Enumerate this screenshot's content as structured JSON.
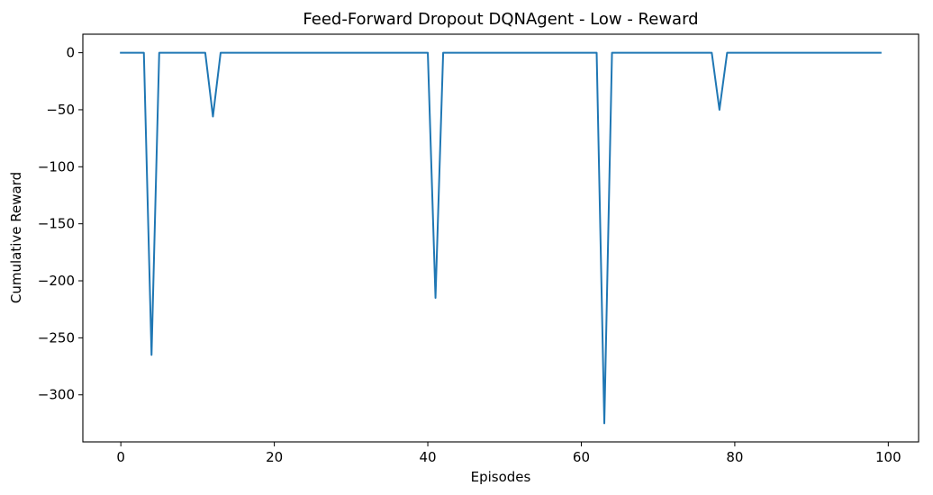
{
  "chart_data": {
    "type": "line",
    "title": "Feed-Forward Dropout DQNAgent - Low - Reward",
    "xlabel": "Episodes",
    "ylabel": "Cumulative Reward",
    "xlim": [
      -4.95,
      103.95
    ],
    "ylim": [
      -341.25,
      16.25
    ],
    "xticks": [
      0,
      20,
      40,
      60,
      80,
      100
    ],
    "yticks": [
      0,
      -50,
      -100,
      -150,
      -200,
      -250,
      -300
    ],
    "grid": false,
    "line_color": "#1f77b4",
    "series": [
      {
        "x": [
          0,
          1,
          2,
          3,
          4,
          5,
          6,
          7,
          8,
          9,
          10,
          11,
          12,
          13,
          14,
          15,
          16,
          17,
          18,
          19,
          20,
          21,
          22,
          23,
          24,
          25,
          26,
          27,
          28,
          29,
          30,
          31,
          32,
          33,
          34,
          35,
          36,
          37,
          38,
          39,
          40,
          41,
          42,
          43,
          44,
          45,
          46,
          47,
          48,
          49,
          50,
          51,
          52,
          53,
          54,
          55,
          56,
          57,
          58,
          59,
          60,
          61,
          62,
          63,
          64,
          65,
          66,
          67,
          68,
          69,
          70,
          71,
          72,
          73,
          74,
          75,
          76,
          77,
          78,
          79,
          80,
          81,
          82,
          83,
          84,
          85,
          86,
          87,
          88,
          89,
          90,
          91,
          92,
          93,
          94,
          95,
          96,
          97,
          98,
          99
        ],
        "values": [
          0,
          0,
          0,
          0,
          -265,
          0,
          0,
          0,
          0,
          0,
          0,
          0,
          -56,
          0,
          0,
          0,
          0,
          0,
          0,
          0,
          0,
          0,
          0,
          0,
          0,
          0,
          0,
          0,
          0,
          0,
          0,
          0,
          0,
          0,
          0,
          0,
          0,
          0,
          0,
          0,
          0,
          -215,
          0,
          0,
          0,
          0,
          0,
          0,
          0,
          0,
          0,
          0,
          0,
          0,
          0,
          0,
          0,
          0,
          0,
          0,
          0,
          0,
          0,
          -325,
          0,
          0,
          0,
          0,
          0,
          0,
          0,
          0,
          0,
          0,
          0,
          0,
          0,
          0,
          -50,
          0,
          0,
          0,
          0,
          0,
          0,
          0,
          0,
          0,
          0,
          0,
          0,
          0,
          0,
          0,
          0,
          0,
          0,
          0,
          0,
          0
        ]
      }
    ]
  }
}
